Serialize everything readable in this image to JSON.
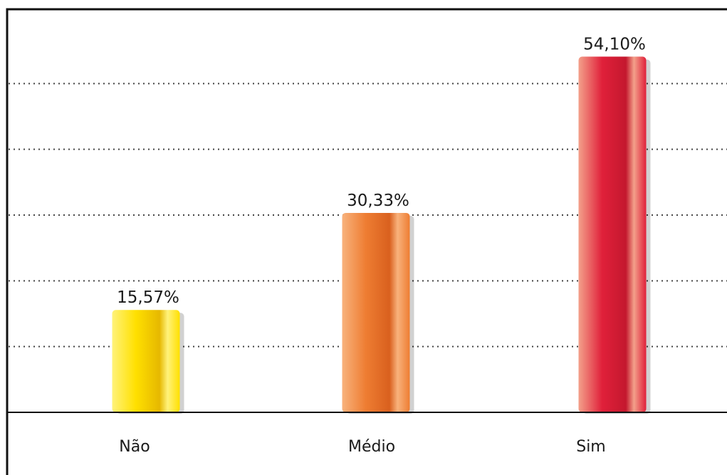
{
  "chart_data": {
    "type": "bar",
    "title": "",
    "xlabel": "",
    "ylabel": "",
    "categories": [
      "Não",
      "Médio",
      "Sim"
    ],
    "values": [
      15.57,
      30.33,
      54.1
    ],
    "value_labels": [
      "15,57%",
      "30,33%",
      "54,10%"
    ],
    "ylim": [
      0,
      60
    ],
    "grid": true,
    "grid_style": "dotted",
    "legend": "none",
    "bar_colors": [
      {
        "light": "#fff27a",
        "base": "#ffe000",
        "dark": "#e6b800"
      },
      {
        "light": "#f8b27c",
        "base": "#ee7d32",
        "dark": "#d9601e"
      },
      {
        "light": "#f3a08a",
        "base": "#e0203a",
        "dark": "#c4182e"
      }
    ]
  }
}
